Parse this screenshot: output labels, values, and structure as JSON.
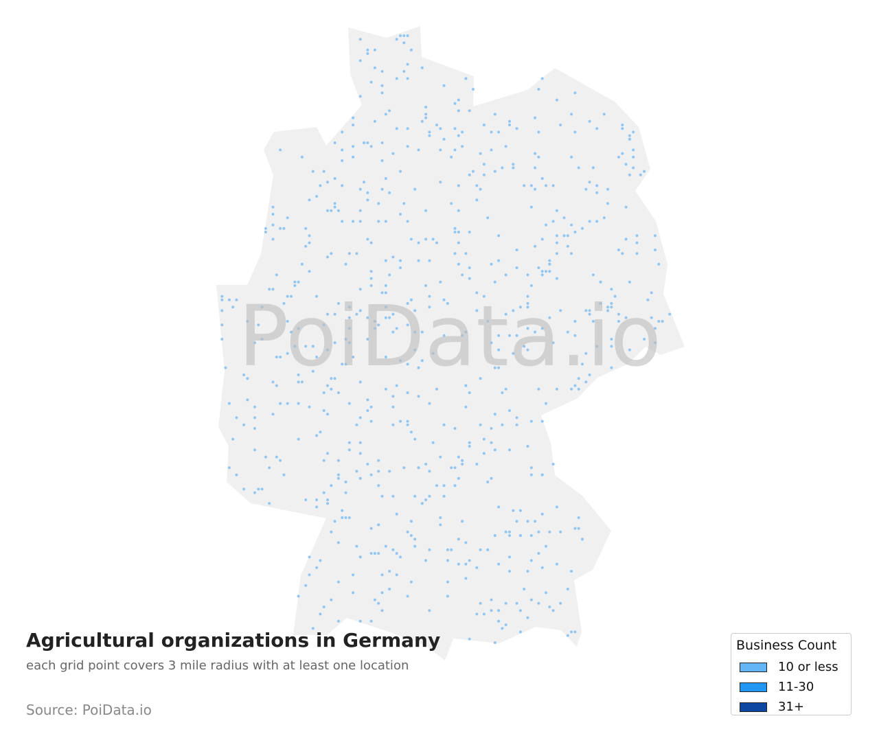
{
  "title": "Agricultural organizations in Germany",
  "subtitle": "each grid point covers 3 mile radius with at least one location",
  "source": "Source: PoiData.io",
  "watermark": "PoiData.io",
  "map": {
    "region": "Germany",
    "land_color": "#f0f0f0",
    "point_color": "#90c6f4"
  },
  "legend": {
    "title": "Business Count",
    "items": [
      {
        "label": "10 or less",
        "color": "#64b5f6"
      },
      {
        "label": "11-30",
        "color": "#2196f3"
      },
      {
        "label": "31+",
        "color": "#0d47a1"
      }
    ]
  }
}
